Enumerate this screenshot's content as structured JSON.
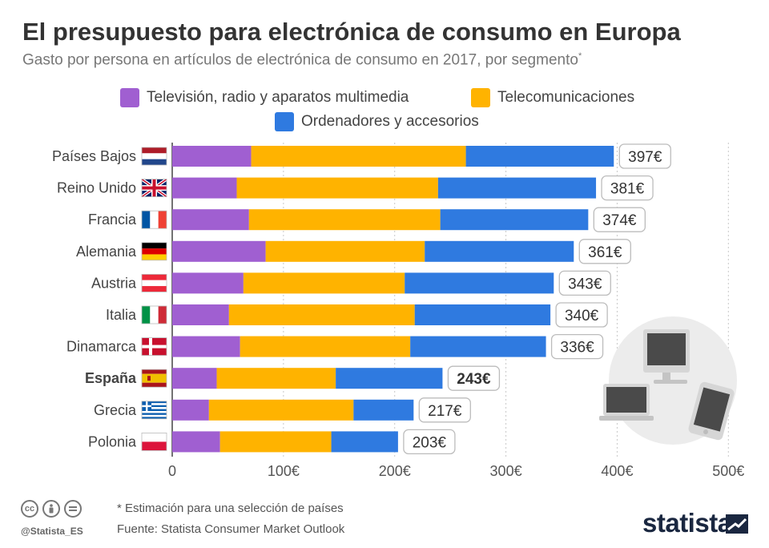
{
  "header": {
    "title": "El presupuesto para electrónica de consumo en Europa",
    "subtitle": "Gasto por persona en artículos de electrónica de consumo en 2017, por segmento",
    "subtitle_mark": "*"
  },
  "colors": {
    "tv": "#a05fd1",
    "telecom": "#ffb300",
    "computers": "#2f7ae0",
    "grid": "#c8c8c8",
    "axis": "#444444",
    "label_border": "#bcbcbc"
  },
  "chart_data": {
    "type": "bar",
    "orientation": "horizontal",
    "stacked": true,
    "title": "El presupuesto para electrónica de consumo en Europa",
    "xlim": [
      0,
      500
    ],
    "x_ticks": [
      0,
      100,
      200,
      300,
      400,
      500
    ],
    "x_tick_labels": [
      "0",
      "100€",
      "200€",
      "300€",
      "400€",
      "500€"
    ],
    "categories": [
      "Países Bajos",
      "Reino Unido",
      "Francia",
      "Alemania",
      "Austria",
      "Italia",
      "Dinamarca",
      "España",
      "Grecia",
      "Polonia"
    ],
    "highlight": "España",
    "flags": [
      "netherlands-flag",
      "united-kingdom-flag",
      "france-flag",
      "germany-flag",
      "austria-flag",
      "italy-flag",
      "denmark-flag",
      "spain-flag",
      "greece-flag",
      "poland-flag"
    ],
    "series": [
      {
        "name": "Televisión, radio y aparatos multimedia",
        "color": "#a05fd1",
        "values": [
          71,
          58,
          69,
          84,
          64,
          51,
          61,
          40,
          33,
          43
        ]
      },
      {
        "name": "Telecomunicaciones",
        "color": "#ffb300",
        "values": [
          193,
          181,
          172,
          143,
          145,
          167,
          153,
          107,
          130,
          100
        ]
      },
      {
        "name": "Ordenadores y accesorios",
        "color": "#2f7ae0",
        "values": [
          133,
          142,
          133,
          134,
          134,
          122,
          122,
          96,
          54,
          60
        ]
      }
    ],
    "totals": [
      "397€",
      "381€",
      "374€",
      "361€",
      "343€",
      "340€",
      "336€",
      "243€",
      "217€",
      "203€"
    ]
  },
  "footer": {
    "note": "* Estimación para una selección de países",
    "source": "Fuente: Statista Consumer Market Outlook",
    "handle": "@Statista_ES",
    "brand": "statista",
    "cc_icons": [
      "cc-icon",
      "by-icon",
      "nd-icon"
    ]
  }
}
